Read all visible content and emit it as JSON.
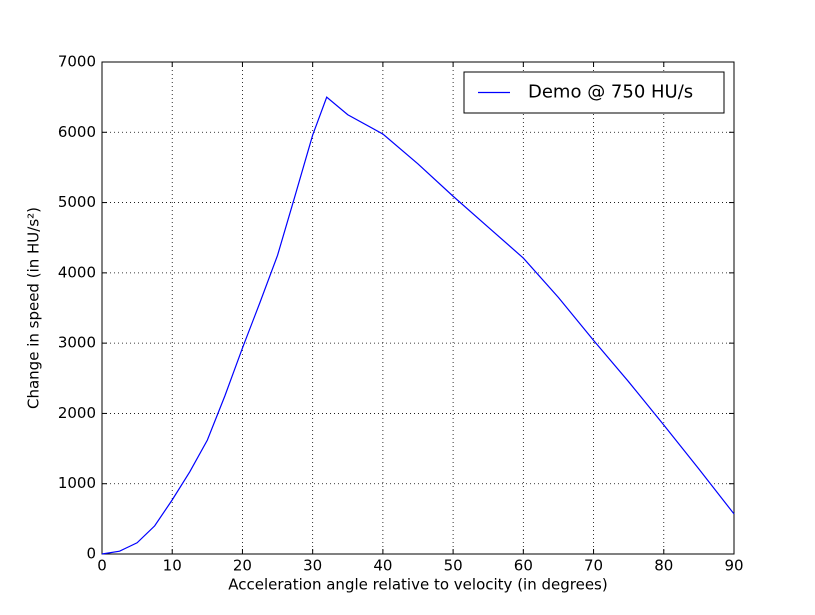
{
  "chart_data": {
    "type": "line",
    "xlabel": "Acceleration angle relative to velocity (in degrees)",
    "ylabel": "Change in speed (in HU/s²)",
    "x": [
      0,
      2.5,
      5,
      7.5,
      10,
      12.5,
      15,
      17.5,
      20,
      22.5,
      25,
      27.5,
      30,
      32,
      35,
      40,
      45,
      50,
      55,
      60,
      65,
      70,
      75,
      80,
      85,
      90
    ],
    "series": [
      {
        "name": "Demo @ 750 HU/s",
        "color": "#0000ff",
        "values": [
          0,
          40,
          160,
          400,
          770,
          1170,
          1620,
          2250,
          2930,
          3580,
          4250,
          5100,
          5960,
          6500,
          6250,
          5975,
          5550,
          5090,
          4650,
          4210,
          3650,
          3040,
          2450,
          1835,
          1210,
          570
        ]
      }
    ],
    "xlim": [
      0,
      90
    ],
    "xticks": [
      0,
      10,
      20,
      30,
      40,
      50,
      60,
      70,
      80,
      90
    ],
    "ylim": [
      0,
      7000
    ],
    "yticks": [
      0,
      1000,
      2000,
      3000,
      4000,
      5000,
      6000,
      7000
    ],
    "grid": true,
    "legend": "upper right"
  }
}
